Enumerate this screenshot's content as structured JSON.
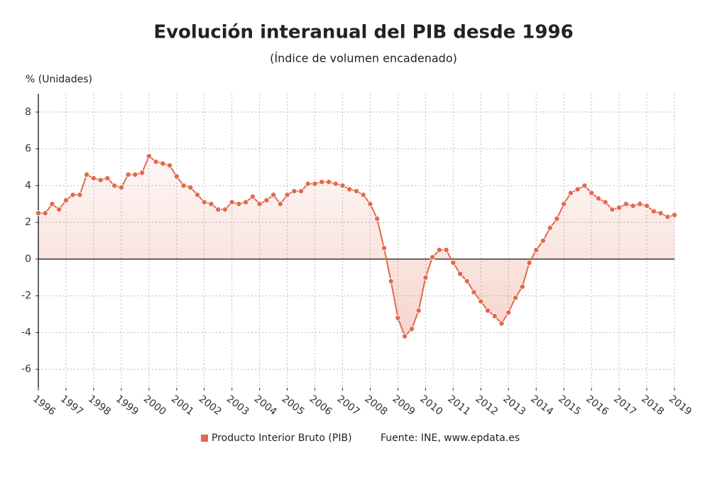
{
  "chart_data": {
    "type": "line",
    "title": "Evolución interanual del PIB desde 1996",
    "subtitle": "(Índice de volumen encadenado)",
    "y_label": "% (Unidades)",
    "source": "Fuente: INE, www.epdata.es",
    "x": [
      1996,
      1996.25,
      1996.5,
      1996.75,
      1997,
      1997.25,
      1997.5,
      1997.75,
      1998,
      1998.25,
      1998.5,
      1998.75,
      1999,
      1999.25,
      1999.5,
      1999.75,
      2000,
      2000.25,
      2000.5,
      2000.75,
      2001,
      2001.25,
      2001.5,
      2001.75,
      2002,
      2002.25,
      2002.5,
      2002.75,
      2003,
      2003.25,
      2003.5,
      2003.75,
      2004,
      2004.25,
      2004.5,
      2004.75,
      2005,
      2005.25,
      2005.5,
      2005.75,
      2006,
      2006.25,
      2006.5,
      2006.75,
      2007,
      2007.25,
      2007.5,
      2007.75,
      2008,
      2008.25,
      2008.5,
      2008.75,
      2009,
      2009.25,
      2009.5,
      2009.75,
      2010,
      2010.25,
      2010.5,
      2010.75,
      2011,
      2011.25,
      2011.5,
      2011.75,
      2012,
      2012.25,
      2012.5,
      2012.75,
      2013,
      2013.25,
      2013.5,
      2013.75,
      2014,
      2014.25,
      2014.5,
      2014.75,
      2015,
      2015.25,
      2015.5,
      2015.75,
      2016,
      2016.25,
      2016.5,
      2016.75,
      2017,
      2017.25,
      2017.5,
      2017.75,
      2018,
      2018.25,
      2018.5,
      2018.75,
      2019
    ],
    "series": [
      {
        "name": "Producto Interior Bruto (PIB)",
        "color": "#e2694d",
        "values": [
          2.5,
          2.5,
          3.0,
          2.7,
          3.2,
          3.5,
          3.5,
          4.6,
          4.4,
          4.3,
          4.4,
          4.0,
          3.9,
          4.6,
          4.6,
          4.7,
          5.6,
          5.3,
          5.2,
          5.1,
          4.5,
          4.0,
          3.9,
          3.5,
          3.1,
          3.0,
          2.7,
          2.7,
          3.1,
          3.0,
          3.1,
          3.4,
          3.0,
          3.2,
          3.5,
          3.0,
          3.5,
          3.7,
          3.7,
          4.1,
          4.1,
          4.2,
          4.2,
          4.1,
          4.0,
          3.8,
          3.7,
          3.5,
          3.0,
          2.2,
          0.6,
          -1.2,
          -3.2,
          -4.2,
          -3.8,
          -2.8,
          -1.0,
          0.1,
          0.5,
          0.5,
          -0.2,
          -0.8,
          -1.2,
          -1.8,
          -2.3,
          -2.8,
          -3.1,
          -3.5,
          -2.9,
          -2.1,
          -1.5,
          -0.2,
          0.5,
          1.0,
          1.7,
          2.2,
          3.0,
          3.6,
          3.8,
          4.0,
          3.6,
          3.3,
          3.1,
          2.7,
          2.8,
          3.0,
          2.9,
          3.0,
          2.9,
          2.6,
          2.5,
          2.3,
          2.4
        ]
      }
    ],
    "xlim": [
      1996,
      2019
    ],
    "xticks": [
      1996,
      1997,
      1998,
      1999,
      2000,
      2001,
      2002,
      2003,
      2004,
      2005,
      2006,
      2007,
      2008,
      2009,
      2010,
      2011,
      2012,
      2013,
      2014,
      2015,
      2016,
      2017,
      2018,
      2019
    ],
    "ylim": [
      -7,
      9
    ],
    "yticks": [
      -6,
      -4,
      -2,
      0,
      2,
      4,
      6,
      8
    ],
    "grid": true
  }
}
